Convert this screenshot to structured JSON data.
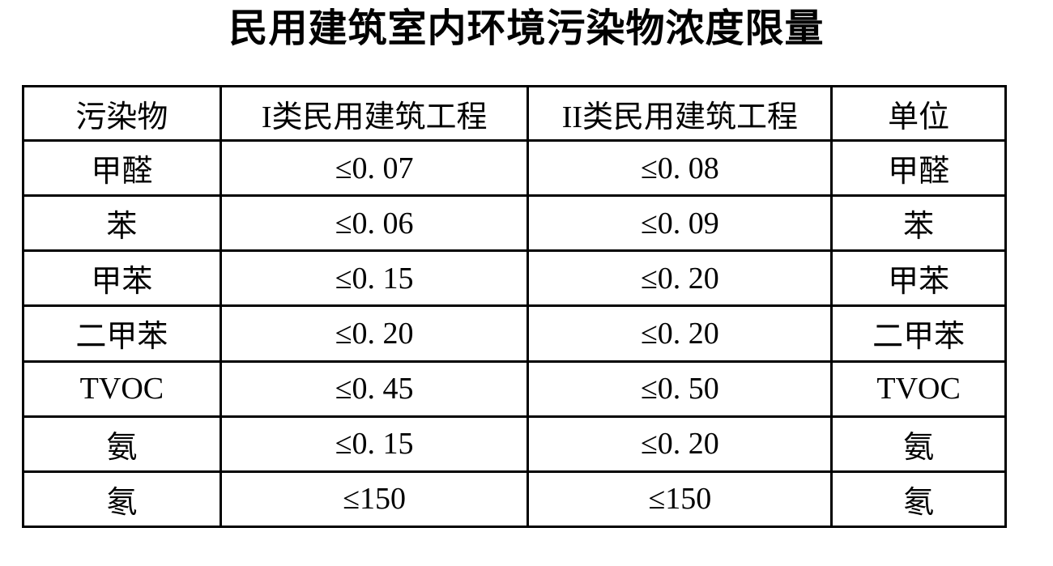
{
  "page": {
    "background_color": "#ffffff",
    "text_color": "#000000",
    "border_color": "#000000"
  },
  "title": "民用建筑室内环境污染物浓度限量",
  "table": {
    "columns": [
      "污染物",
      "I类民用建筑工程",
      "II类民用建筑工程",
      "单位"
    ],
    "rows": [
      [
        "甲醛",
        "≤0. 07",
        "≤0. 08",
        "甲醛"
      ],
      [
        "苯",
        "≤0. 06",
        "≤0. 09",
        "苯"
      ],
      [
        "甲苯",
        "≤0. 15",
        "≤0. 20",
        "甲苯"
      ],
      [
        "二甲苯",
        "≤0. 20",
        "≤0. 20",
        "二甲苯"
      ],
      [
        "TVOC",
        "≤0. 45",
        "≤0. 50",
        "TVOC"
      ],
      [
        "氨",
        "≤0. 15",
        "≤0. 20",
        "氨"
      ],
      [
        "氡",
        "≤150",
        "≤150",
        "氡"
      ]
    ]
  }
}
